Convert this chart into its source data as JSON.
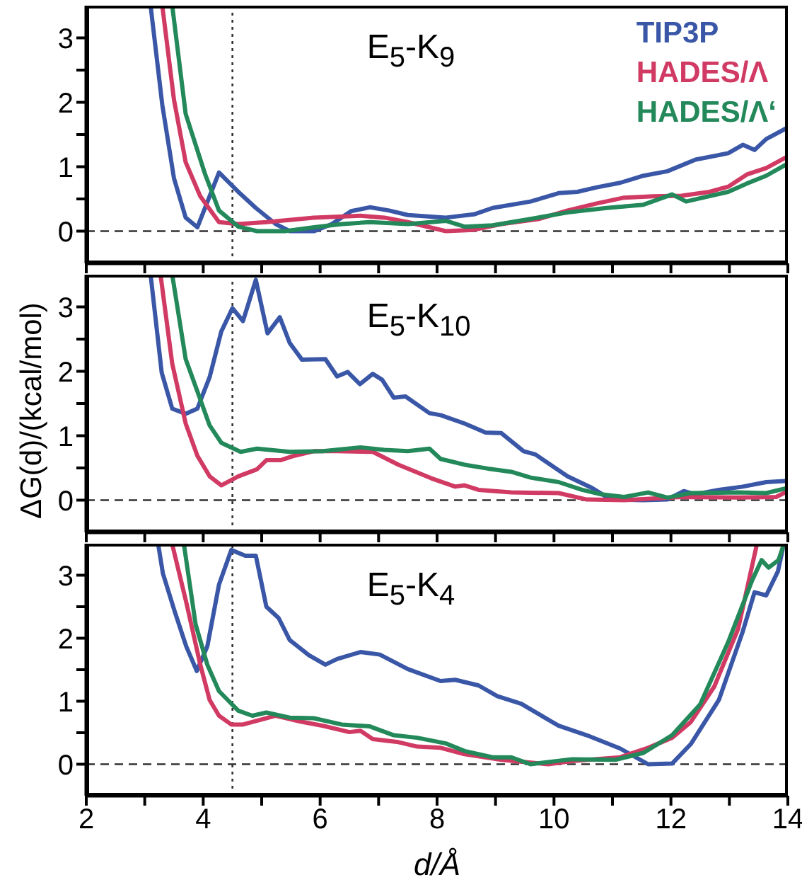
{
  "chart_data": [
    {
      "type": "line",
      "title": "E$_{5}$-K$_{9}$",
      "xlim": [
        2,
        14
      ],
      "ylim": [
        -0.5,
        3.5
      ],
      "tick_labels": "y",
      "legend": "top right",
      "line_style": "solid",
      "marker": "none",
      "xticks": [
        2,
        {
          "value": 3,
          "label": null
        },
        4,
        {
          "value": 5,
          "label": null
        },
        6,
        {
          "value": 7,
          "label": null
        },
        8,
        {
          "value": 9,
          "label": null
        },
        10,
        {
          "value": 11,
          "label": null
        },
        12,
        {
          "value": 13,
          "label": null
        },
        14
      ],
      "yticks": [
        0,
        {
          "value": 0.5,
          "label": null
        },
        1,
        {
          "value": 1.5,
          "label": null
        },
        2,
        {
          "value": 2.5,
          "label": null
        },
        3
      ],
      "ref_lines": [
        {
          "axis": "y",
          "value": 0,
          "line_style": "dashed",
          "color": "#333333"
        },
        {
          "axis": "x",
          "value": 4.5,
          "line_style": "dotted",
          "color": "#333333"
        }
      ],
      "series": [
        {
          "name": "TIP3P",
          "color": "#3a57a7",
          "x": [
            3.1,
            3.3,
            3.5,
            3.7,
            3.9,
            4.27,
            4.6,
            4.9,
            5.24,
            5.48,
            5.9,
            6.2,
            6.53,
            6.85,
            7.18,
            7.5,
            8.15,
            8.63,
            8.95,
            9.6,
            10.08,
            10.4,
            10.73,
            11.13,
            11.53,
            11.94,
            12.42,
            12.98,
            13.23,
            13.43,
            13.63,
            14
          ],
          "values": [
            3.5,
            1.96,
            0.82,
            0.21,
            0.06,
            0.91,
            0.61,
            0.36,
            0.11,
            0,
            0,
            0.11,
            0.31,
            0.37,
            0.32,
            0.25,
            0.21,
            0.26,
            0.36,
            0.46,
            0.59,
            0.61,
            0.68,
            0.75,
            0.86,
            0.93,
            1.11,
            1.21,
            1.34,
            1.26,
            1.43,
            1.61
          ]
        },
        {
          "name": "HADES/Λ",
          "color": "#d03a63",
          "x": [
            3.3,
            3.5,
            3.7,
            3.95,
            4.27,
            4.6,
            5.08,
            5.89,
            6.69,
            7.1,
            7.5,
            8.15,
            8.63,
            9.1,
            9.75,
            10.23,
            10.73,
            11.2,
            11.7,
            12.18,
            12.66,
            12.98,
            13.3,
            13.63,
            14
          ],
          "values": [
            3.5,
            2.04,
            1.07,
            0.54,
            0.14,
            0.11,
            0.14,
            0.21,
            0.24,
            0.21,
            0.14,
            0,
            0.02,
            0.11,
            0.19,
            0.32,
            0.43,
            0.52,
            0.54,
            0.55,
            0.61,
            0.69,
            0.88,
            0.98,
            1.16
          ]
        },
        {
          "name": "HADES/Λ‘",
          "color": "#23895a",
          "x": [
            3.47,
            3.7,
            4.03,
            4.27,
            4.6,
            4.92,
            5.4,
            5.9,
            6.37,
            6.85,
            7.5,
            8.15,
            8.47,
            8.95,
            9.6,
            10.23,
            10.9,
            11.53,
            12.02,
            12.26,
            12.98,
            13.3,
            13.63,
            14
          ],
          "values": [
            3.5,
            1.82,
            0.89,
            0.32,
            0.07,
            0,
            0,
            0.06,
            0.11,
            0.14,
            0.11,
            0.16,
            0.07,
            0.09,
            0.19,
            0.29,
            0.36,
            0.41,
            0.57,
            0.46,
            0.61,
            0.74,
            0.86,
            1.05
          ]
        }
      ]
    },
    {
      "type": "line",
      "title": "E$_{5}$-K$_{10}$",
      "ylabel": "ΔG(d)/(kcal/mol)",
      "xlim": [
        2,
        14
      ],
      "ylim": [
        -0.5,
        3.5
      ],
      "tick_labels": "y",
      "line_style": "solid",
      "marker": "none",
      "xticks": [
        2,
        {
          "value": 3,
          "label": null
        },
        4,
        {
          "value": 5,
          "label": null
        },
        6,
        {
          "value": 7,
          "label": null
        },
        8,
        {
          "value": 9,
          "label": null
        },
        10,
        {
          "value": 11,
          "label": null
        },
        12,
        {
          "value": 13,
          "label": null
        },
        14
      ],
      "yticks": [
        0,
        {
          "value": 0.5,
          "label": null
        },
        1,
        {
          "value": 1.5,
          "label": null
        },
        2,
        {
          "value": 2.5,
          "label": null
        },
        3
      ],
      "ref_lines": [
        {
          "axis": "y",
          "value": 0,
          "line_style": "dashed",
          "color": "#333333"
        },
        {
          "axis": "x",
          "value": 4.5,
          "line_style": "dotted",
          "color": "#333333"
        }
      ],
      "series": [
        {
          "color": "#3a57a7",
          "x": [
            3.1,
            3.29,
            3.47,
            3.7,
            3.9,
            4.11,
            4.31,
            4.5,
            4.68,
            4.9,
            5.1,
            5.31,
            5.48,
            5.69,
            6.09,
            6.29,
            6.47,
            6.68,
            6.9,
            7.06,
            7.26,
            7.46,
            7.87,
            8.06,
            8.47,
            8.83,
            9.1,
            9.48,
            9.68,
            10.23,
            10.65,
            10.97,
            11.53,
            11.94,
            12.22,
            12.42,
            12.82,
            13.23,
            13.63,
            14
          ],
          "values": [
            3.5,
            1.98,
            1.42,
            1.34,
            1.42,
            1.91,
            2.62,
            2.98,
            2.78,
            3.42,
            2.59,
            2.84,
            2.44,
            2.18,
            2.19,
            1.92,
            1.99,
            1.8,
            1.96,
            1.87,
            1.59,
            1.61,
            1.35,
            1.32,
            1.19,
            1.05,
            1.04,
            0.76,
            0.71,
            0.37,
            0.19,
            0.01,
            0,
            0.01,
            0.14,
            0.09,
            0.16,
            0.21,
            0.28,
            0.3
          ]
        },
        {
          "color": "#d03a63",
          "x": [
            3.27,
            3.47,
            3.7,
            3.9,
            4.11,
            4.31,
            4.6,
            4.92,
            5.08,
            5.32,
            5.56,
            5.89,
            6.29,
            6.9,
            7.34,
            7.9,
            8.31,
            8.47,
            8.71,
            9.27,
            10.08,
            10.56,
            11.2,
            12.18,
            13.15,
            13.8,
            14
          ],
          "values": [
            3.5,
            2.12,
            1.19,
            0.69,
            0.37,
            0.23,
            0.37,
            0.48,
            0.62,
            0.62,
            0.69,
            0.76,
            0.76,
            0.75,
            0.55,
            0.34,
            0.21,
            0.23,
            0.16,
            0.12,
            0.11,
            0.01,
            0,
            0.05,
            0.04,
            0.05,
            0.14
          ]
        },
        {
          "color": "#23895a",
          "x": [
            3.47,
            3.7,
            3.9,
            4.11,
            4.31,
            4.64,
            4.92,
            5.48,
            6.05,
            6.69,
            7.1,
            7.5,
            7.87,
            8.06,
            8.47,
            8.87,
            9.27,
            9.6,
            10.08,
            10.48,
            10.81,
            11.2,
            11.61,
            11.94,
            12.34,
            13.15,
            13.63,
            14
          ],
          "values": [
            3.5,
            2.19,
            1.69,
            1.16,
            0.89,
            0.75,
            0.8,
            0.75,
            0.76,
            0.82,
            0.78,
            0.76,
            0.8,
            0.64,
            0.55,
            0.49,
            0.44,
            0.35,
            0.28,
            0.16,
            0.09,
            0.05,
            0.12,
            0.04,
            0.11,
            0.12,
            0.11,
            0.19
          ]
        }
      ]
    },
    {
      "type": "line",
      "title": "E$_{5}$-K$_{4}$",
      "xlabel": "d/Å",
      "xlim": [
        2,
        14
      ],
      "ylim": [
        -0.5,
        3.5
      ],
      "line_style": "solid",
      "marker": "none",
      "xticks": [
        2,
        {
          "value": 3,
          "label": null
        },
        4,
        {
          "value": 5,
          "label": null
        },
        6,
        {
          "value": 7,
          "label": null
        },
        8,
        {
          "value": 9,
          "label": null
        },
        10,
        {
          "value": 11,
          "label": null
        },
        12,
        {
          "value": 13,
          "label": null
        },
        14
      ],
      "yticks": [
        0,
        {
          "value": 0.5,
          "label": null
        },
        1,
        {
          "value": 1.5,
          "label": null
        },
        2,
        {
          "value": 2.5,
          "label": null
        },
        3
      ],
      "ref_lines": [
        {
          "axis": "y",
          "value": 0,
          "line_style": "dashed",
          "color": "#333333"
        },
        {
          "axis": "x",
          "value": 4.5,
          "line_style": "dotted",
          "color": "#333333"
        }
      ],
      "series": [
        {
          "color": "#3a57a7",
          "x": [
            3.23,
            3.31,
            3.51,
            3.71,
            3.89,
            4.07,
            4.27,
            4.48,
            4.72,
            4.9,
            5.08,
            5.29,
            5.48,
            5.81,
            6.09,
            6.29,
            6.69,
            7.02,
            7.5,
            8.06,
            8.31,
            8.71,
            9.03,
            9.44,
            9.84,
            10.08,
            10.56,
            11.13,
            11.61,
            12.02,
            12.34,
            12.82,
            13.23,
            13.43,
            13.63,
            13.83,
            13.93
          ],
          "values": [
            3.49,
            3.03,
            2.43,
            1.87,
            1.48,
            1.87,
            2.85,
            3.4,
            3.31,
            3.31,
            2.5,
            2.32,
            1.97,
            1.73,
            1.58,
            1.67,
            1.78,
            1.74,
            1.51,
            1.32,
            1.34,
            1.25,
            1.08,
            0.96,
            0.74,
            0.61,
            0.46,
            0.25,
            0,
            0.01,
            0.32,
            1.02,
            2.11,
            2.73,
            2.68,
            3.06,
            3.49
          ]
        },
        {
          "color": "#d03a63",
          "x": [
            3.47,
            3.71,
            3.95,
            4.11,
            4.27,
            4.48,
            4.68,
            5.24,
            5.65,
            6.05,
            6.5,
            6.69,
            6.9,
            7.34,
            7.66,
            8.06,
            8.47,
            9.1,
            9.9,
            10.31,
            11.13,
            11.61,
            12.02,
            12.34,
            12.74,
            13.15,
            13.47
          ],
          "values": [
            3.49,
            2.57,
            1.58,
            1.02,
            0.77,
            0.63,
            0.63,
            0.77,
            0.68,
            0.61,
            0.51,
            0.53,
            0.4,
            0.35,
            0.28,
            0.26,
            0.16,
            0.07,
            0,
            0.05,
            0.11,
            0.26,
            0.42,
            0.67,
            1.23,
            2.15,
            3.49
          ]
        },
        {
          "color": "#23895a",
          "x": [
            3.67,
            3.87,
            4.07,
            4.27,
            4.6,
            4.84,
            5.08,
            5.48,
            5.89,
            6.37,
            6.85,
            7.26,
            7.66,
            8.15,
            8.47,
            8.95,
            9.27,
            9.6,
            10.31,
            11.05,
            11.53,
            12.02,
            12.5,
            12.98,
            13.39,
            13.55,
            13.67,
            13.84,
            13.93
          ],
          "values": [
            3.49,
            2.22,
            1.58,
            1.16,
            0.85,
            0.77,
            0.82,
            0.74,
            0.73,
            0.63,
            0.6,
            0.46,
            0.42,
            0.33,
            0.21,
            0.11,
            0.11,
            0,
            0.08,
            0.07,
            0.18,
            0.46,
            0.95,
            1.94,
            2.92,
            3.24,
            3.12,
            3.24,
            3.49
          ]
        }
      ]
    }
  ]
}
